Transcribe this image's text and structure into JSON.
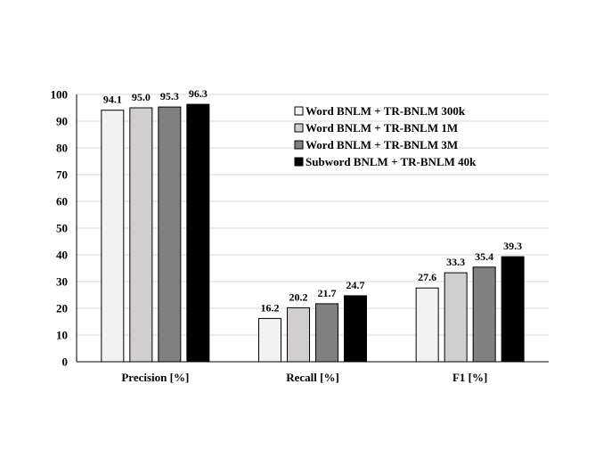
{
  "chart_data": {
    "type": "bar",
    "categories": [
      "Precision [%]",
      "Recall [%]",
      "F1 [%]"
    ],
    "series": [
      {
        "name": "Word BNLM + TR-BNLM 300k",
        "values": [
          94.1,
          16.2,
          27.6
        ],
        "color": "#f2f2f2"
      },
      {
        "name": "Word BNLM + TR-BNLM 1M",
        "values": [
          95.0,
          20.2,
          33.3
        ],
        "color": "#d0cece"
      },
      {
        "name": "Word BNLM + TR-BNLM 3M",
        "values": [
          95.3,
          21.7,
          35.4
        ],
        "color": "#808080"
      },
      {
        "name": "Subword BNLM + TR-BNLM 40k",
        "values": [
          96.3,
          24.7,
          39.3
        ],
        "color": "#000000"
      }
    ],
    "value_labels": [
      [
        "94.1",
        "16.2",
        "27.6"
      ],
      [
        "95.0",
        "20.2",
        "33.3"
      ],
      [
        "95.3",
        "21.7",
        "35.4"
      ],
      [
        "96.3",
        "24.7",
        "39.3"
      ]
    ],
    "yticks": [
      0,
      10,
      20,
      30,
      40,
      50,
      60,
      70,
      80,
      90,
      100
    ],
    "ylim": [
      0,
      100
    ],
    "grid": true,
    "legend_position": "top-right"
  }
}
